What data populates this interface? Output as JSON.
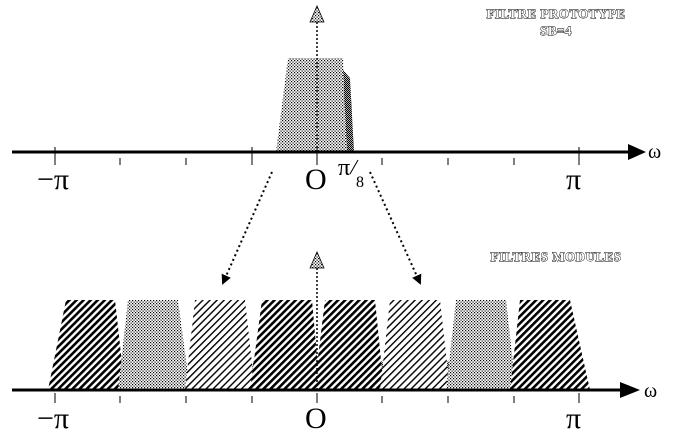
{
  "top_panel": {
    "title_line1": "FILTRE PROTOTYPE",
    "title_line2": "SB=4",
    "axis_variable": "ω",
    "label_minus_pi": "−π",
    "label_origin": "O",
    "label_pi_over_8_num": "π",
    "label_pi_over_8_den": "8",
    "label_pi": "π"
  },
  "bottom_panel": {
    "title": "FILTRES MODULES",
    "axis_variable": "ω",
    "label_minus_pi": "−π",
    "label_origin": "O",
    "label_pi": "π"
  },
  "colors": {
    "ink": "#000000",
    "background": "#ffffff"
  }
}
